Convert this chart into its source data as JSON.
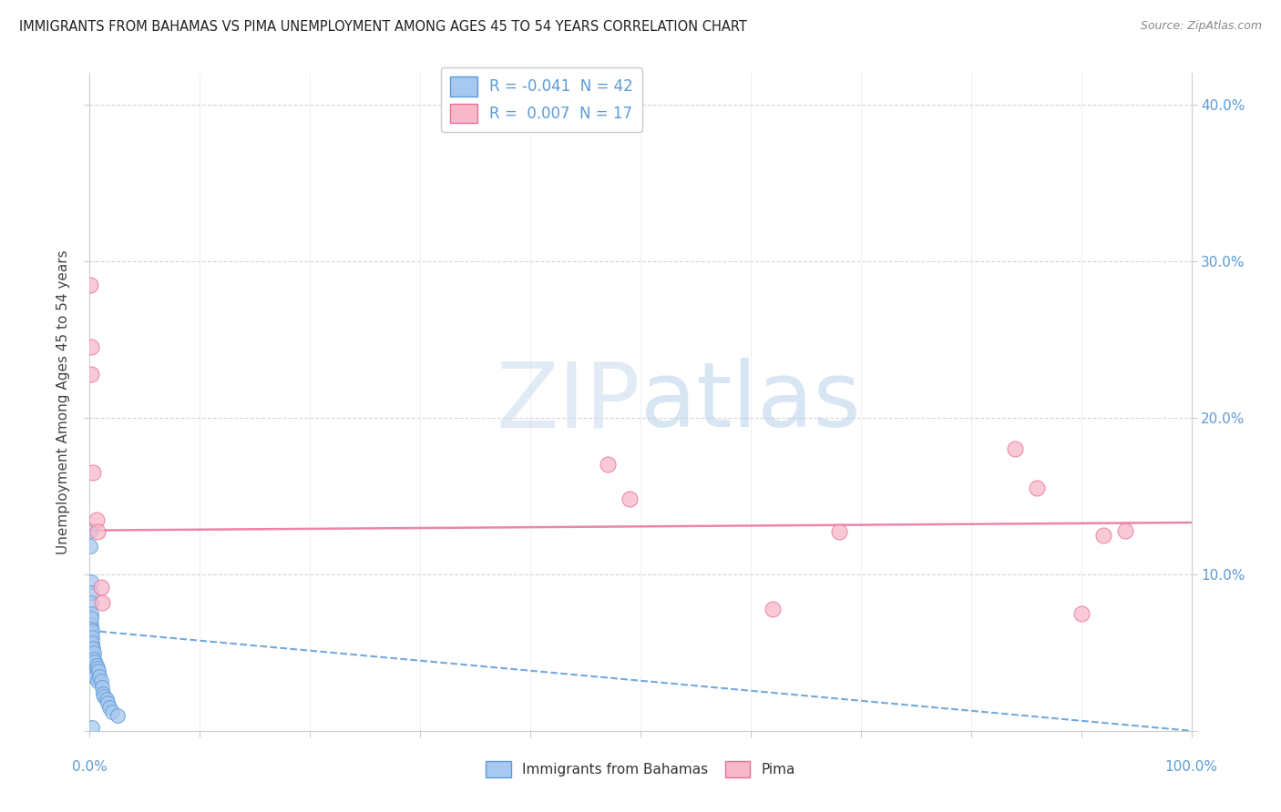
{
  "title": "IMMIGRANTS FROM BAHAMAS VS PIMA UNEMPLOYMENT AMONG AGES 45 TO 54 YEARS CORRELATION CHART",
  "source": "Source: ZipAtlas.com",
  "ylabel": "Unemployment Among Ages 45 to 54 years",
  "xlim": [
    0.0,
    1.0
  ],
  "ylim": [
    0.0,
    0.42
  ],
  "yticks": [
    0.0,
    0.1,
    0.2,
    0.3,
    0.4
  ],
  "ytick_labels_right": [
    "",
    "10.0%",
    "20.0%",
    "30.0%",
    "40.0%"
  ],
  "background_color": "#ffffff",
  "axis_color": "#5b9bd5",
  "grid_color": "#cccccc",
  "blue_series_label": "R = -0.041  N = 42",
  "pink_series_label": "R =  0.007  N = 17",
  "legend_bottom_labels": [
    "Immigrants from Bahamas",
    "Pima"
  ],
  "blue_color": "#a8c8f0",
  "blue_edge": "#5b9bd5",
  "pink_color": "#f8b8cc",
  "pink_edge": "#e87090",
  "blue_trend_color": "#5b9bd5",
  "pink_trend_color": "#e8709a",
  "blue_dots": [
    [
      0.0005,
      0.128
    ],
    [
      0.0008,
      0.118
    ],
    [
      0.001,
      0.095
    ],
    [
      0.001,
      0.088
    ],
    [
      0.001,
      0.082
    ],
    [
      0.0012,
      0.075
    ],
    [
      0.0013,
      0.068
    ],
    [
      0.0014,
      0.072
    ],
    [
      0.0015,
      0.065
    ],
    [
      0.0016,
      0.062
    ],
    [
      0.0017,
      0.058
    ],
    [
      0.0018,
      0.055
    ],
    [
      0.0019,
      0.052
    ],
    [
      0.002,
      0.064
    ],
    [
      0.002,
      0.048
    ],
    [
      0.0022,
      0.06
    ],
    [
      0.0023,
      0.044
    ],
    [
      0.0024,
      0.056
    ],
    [
      0.0025,
      0.042
    ],
    [
      0.003,
      0.053
    ],
    [
      0.003,
      0.04
    ],
    [
      0.0035,
      0.05
    ],
    [
      0.004,
      0.046
    ],
    [
      0.004,
      0.038
    ],
    [
      0.005,
      0.044
    ],
    [
      0.005,
      0.036
    ],
    [
      0.005,
      0.034
    ],
    [
      0.006,
      0.042
    ],
    [
      0.007,
      0.04
    ],
    [
      0.007,
      0.032
    ],
    [
      0.008,
      0.038
    ],
    [
      0.009,
      0.035
    ],
    [
      0.01,
      0.032
    ],
    [
      0.011,
      0.028
    ],
    [
      0.012,
      0.024
    ],
    [
      0.013,
      0.022
    ],
    [
      0.015,
      0.02
    ],
    [
      0.016,
      0.018
    ],
    [
      0.018,
      0.015
    ],
    [
      0.02,
      0.012
    ],
    [
      0.025,
      0.01
    ],
    [
      0.002,
      0.002
    ]
  ],
  "pink_dots": [
    [
      0.0008,
      0.285
    ],
    [
      0.001,
      0.245
    ],
    [
      0.0013,
      0.228
    ],
    [
      0.003,
      0.165
    ],
    [
      0.006,
      0.135
    ],
    [
      0.007,
      0.127
    ],
    [
      0.01,
      0.092
    ],
    [
      0.011,
      0.082
    ],
    [
      0.47,
      0.17
    ],
    [
      0.49,
      0.148
    ],
    [
      0.62,
      0.078
    ],
    [
      0.68,
      0.127
    ],
    [
      0.84,
      0.18
    ],
    [
      0.86,
      0.155
    ],
    [
      0.9,
      0.075
    ],
    [
      0.92,
      0.125
    ],
    [
      0.94,
      0.128
    ]
  ],
  "blue_trend_x": [
    0.0,
    1.0
  ],
  "blue_trend_y": [
    0.064,
    0.0
  ],
  "pink_trend_x": [
    0.0,
    1.0
  ],
  "pink_trend_y": [
    0.128,
    0.133
  ]
}
